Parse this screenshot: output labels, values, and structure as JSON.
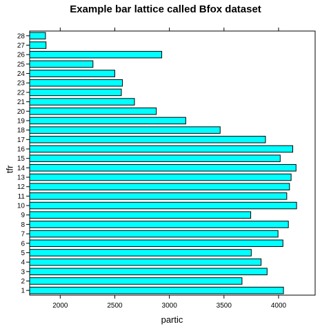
{
  "chart_data": {
    "type": "bar",
    "orientation": "horizontal",
    "title": "Example bar lattice called Bfox dataset",
    "xlabel": "partic",
    "ylabel": "tfr",
    "categories": [
      "1",
      "2",
      "3",
      "4",
      "5",
      "6",
      "7",
      "8",
      "9",
      "10",
      "11",
      "12",
      "13",
      "14",
      "15",
      "16",
      "17",
      "18",
      "19",
      "20",
      "21",
      "22",
      "23",
      "24",
      "25",
      "26",
      "27",
      "28"
    ],
    "values": [
      4045,
      3665,
      3895,
      3840,
      3750,
      4040,
      3995,
      4090,
      3745,
      4165,
      4075,
      4100,
      4115,
      4160,
      4015,
      4130,
      3880,
      3465,
      3150,
      2880,
      2680,
      2560,
      2570,
      2500,
      2300,
      2930,
      1870,
      1865
    ],
    "xlim": [
      1720,
      4335
    ],
    "xticks": [
      "2000",
      "2500",
      "3000",
      "3500",
      "4000"
    ],
    "colors": {
      "bar_fill": "#00FFFF",
      "bar_stroke": "#000000",
      "axis": "#000000"
    }
  }
}
